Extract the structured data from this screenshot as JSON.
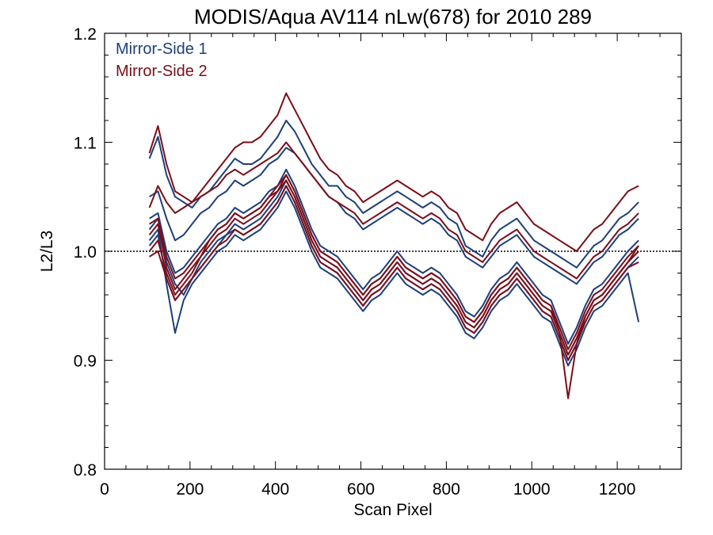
{
  "chart_data": {
    "type": "line",
    "title": "MODIS/Aqua AV114 nLw(678) for 2010 289",
    "xlabel": "Scan Pixel",
    "ylabel": "L2/L3",
    "xlim": [
      0,
      1350
    ],
    "ylim": [
      0.8,
      1.2
    ],
    "x_ticks": [
      0,
      200,
      400,
      600,
      800,
      1000,
      1200
    ],
    "x_tick_labels": [
      "0",
      "200",
      "400",
      "600",
      "800",
      "1000",
      "1200"
    ],
    "y_ticks": [
      0.8,
      0.9,
      1.0,
      1.1,
      1.2
    ],
    "y_tick_labels": [
      "0.8",
      "0.9",
      "1.0",
      "1.1",
      "1.2"
    ],
    "reference_line": 1.0,
    "legend_position": "top-left",
    "grid": false,
    "colors": {
      "mirror_side_1": "#1f3f7a",
      "mirror_side_2": "#7a0f1a"
    },
    "legend": [
      {
        "label": "Mirror-Side 1",
        "color": "#1f3f7a"
      },
      {
        "label": "Mirror-Side 2",
        "color": "#7a0f1a"
      }
    ],
    "x": [
      105,
      125,
      145,
      165,
      185,
      205,
      225,
      245,
      265,
      285,
      305,
      325,
      345,
      365,
      385,
      405,
      425,
      445,
      465,
      485,
      505,
      525,
      545,
      565,
      585,
      605,
      625,
      645,
      665,
      685,
      705,
      725,
      745,
      765,
      785,
      805,
      825,
      845,
      865,
      885,
      905,
      925,
      945,
      965,
      985,
      1005,
      1025,
      1045,
      1065,
      1085,
      1105,
      1125,
      1145,
      1165,
      1185,
      1205,
      1225,
      1250
    ],
    "series": [
      {
        "group": 1,
        "values": [
          1.085,
          1.105,
          1.07,
          1.05,
          1.045,
          1.04,
          1.05,
          1.055,
          1.065,
          1.075,
          1.085,
          1.08,
          1.08,
          1.085,
          1.095,
          1.105,
          1.12,
          1.11,
          1.095,
          1.08,
          1.07,
          1.06,
          1.06,
          1.05,
          1.045,
          1.035,
          1.04,
          1.045,
          1.05,
          1.055,
          1.05,
          1.045,
          1.04,
          1.045,
          1.04,
          1.03,
          1.025,
          1.005,
          1.0,
          0.995,
          1.01,
          1.02,
          1.025,
          1.03,
          1.02,
          1.01,
          1.005,
          1.0,
          0.995,
          0.99,
          0.985,
          0.995,
          1.005,
          1.01,
          1.02,
          1.03,
          1.035,
          1.045
        ]
      },
      {
        "group": 1,
        "values": [
          1.05,
          1.055,
          1.03,
          1.01,
          1.015,
          1.025,
          1.035,
          1.04,
          1.05,
          1.055,
          1.065,
          1.06,
          1.065,
          1.07,
          1.08,
          1.085,
          1.095,
          1.09,
          1.08,
          1.07,
          1.06,
          1.05,
          1.045,
          1.035,
          1.03,
          1.02,
          1.025,
          1.03,
          1.035,
          1.04,
          1.035,
          1.03,
          1.025,
          1.03,
          1.025,
          1.015,
          1.01,
          0.995,
          0.99,
          0.985,
          0.995,
          1.005,
          1.01,
          1.015,
          1.005,
          0.995,
          0.99,
          0.985,
          0.98,
          0.975,
          0.97,
          0.98,
          0.99,
          0.995,
          1.005,
          1.015,
          1.02,
          1.03
        ]
      },
      {
        "group": 1,
        "values": [
          1.02,
          1.03,
          0.99,
          0.97,
          0.96,
          0.975,
          0.985,
          0.995,
          1.005,
          1.015,
          1.02,
          1.015,
          1.02,
          1.025,
          1.035,
          1.045,
          1.06,
          1.045,
          1.025,
          1.005,
          0.99,
          0.985,
          0.98,
          0.97,
          0.96,
          0.95,
          0.96,
          0.965,
          0.975,
          0.985,
          0.975,
          0.97,
          0.965,
          0.97,
          0.965,
          0.955,
          0.945,
          0.93,
          0.925,
          0.935,
          0.95,
          0.96,
          0.965,
          0.975,
          0.965,
          0.955,
          0.945,
          0.94,
          0.92,
          0.9,
          0.915,
          0.935,
          0.95,
          0.955,
          0.965,
          0.975,
          0.985,
          0.995
        ]
      },
      {
        "group": 1,
        "values": [
          1.005,
          1.015,
          0.975,
          0.955,
          0.965,
          0.975,
          0.99,
          1.0,
          1.01,
          1.015,
          1.025,
          1.02,
          1.025,
          1.03,
          1.04,
          1.05,
          1.065,
          1.05,
          1.03,
          1.01,
          0.995,
          0.99,
          0.985,
          0.975,
          0.965,
          0.955,
          0.965,
          0.97,
          0.98,
          0.99,
          0.98,
          0.975,
          0.97,
          0.975,
          0.97,
          0.96,
          0.95,
          0.935,
          0.93,
          0.94,
          0.955,
          0.965,
          0.97,
          0.98,
          0.97,
          0.96,
          0.95,
          0.945,
          0.925,
          0.905,
          0.92,
          0.94,
          0.955,
          0.96,
          0.97,
          0.98,
          0.99,
          1.0
        ]
      },
      {
        "group": 1,
        "values": [
          1.03,
          1.035,
          1.0,
          0.98,
          0.985,
          0.995,
          1.005,
          1.015,
          1.025,
          1.03,
          1.04,
          1.035,
          1.04,
          1.045,
          1.055,
          1.06,
          1.075,
          1.06,
          1.04,
          1.02,
          1.005,
          1.0,
          0.995,
          0.985,
          0.975,
          0.965,
          0.975,
          0.98,
          0.99,
          1.0,
          0.99,
          0.985,
          0.98,
          0.985,
          0.98,
          0.97,
          0.96,
          0.945,
          0.94,
          0.95,
          0.965,
          0.975,
          0.98,
          0.99,
          0.98,
          0.97,
          0.96,
          0.955,
          0.935,
          0.915,
          0.93,
          0.95,
          0.965,
          0.97,
          0.98,
          0.99,
          1.0,
          1.01
        ]
      },
      {
        "group": 1,
        "values": [
          1.01,
          1.02,
          0.97,
          0.925,
          0.955,
          0.97,
          0.98,
          0.99,
          1.0,
          1.005,
          1.015,
          1.01,
          1.015,
          1.02,
          1.03,
          1.04,
          1.055,
          1.04,
          1.02,
          1.0,
          0.985,
          0.98,
          0.975,
          0.965,
          0.955,
          0.945,
          0.955,
          0.96,
          0.97,
          0.98,
          0.97,
          0.965,
          0.96,
          0.965,
          0.96,
          0.95,
          0.94,
          0.925,
          0.92,
          0.93,
          0.945,
          0.955,
          0.96,
          0.97,
          0.96,
          0.95,
          0.94,
          0.935,
          0.915,
          0.895,
          0.91,
          0.93,
          0.945,
          0.95,
          0.96,
          0.97,
          0.98,
          0.935
        ]
      },
      {
        "group": 2,
        "values": [
          1.09,
          1.115,
          1.08,
          1.055,
          1.05,
          1.045,
          1.055,
          1.065,
          1.075,
          1.085,
          1.095,
          1.1,
          1.1,
          1.105,
          1.115,
          1.125,
          1.145,
          1.13,
          1.115,
          1.1,
          1.085,
          1.075,
          1.07,
          1.06,
          1.055,
          1.045,
          1.05,
          1.055,
          1.06,
          1.065,
          1.06,
          1.055,
          1.05,
          1.055,
          1.05,
          1.04,
          1.035,
          1.02,
          1.015,
          1.01,
          1.025,
          1.035,
          1.04,
          1.045,
          1.035,
          1.025,
          1.02,
          1.015,
          1.01,
          1.005,
          1.0,
          1.01,
          1.02,
          1.025,
          1.035,
          1.045,
          1.055,
          1.06
        ]
      },
      {
        "group": 2,
        "values": [
          1.04,
          1.06,
          1.045,
          1.035,
          1.04,
          1.045,
          1.05,
          1.055,
          1.06,
          1.07,
          1.075,
          1.07,
          1.075,
          1.08,
          1.085,
          1.09,
          1.1,
          1.09,
          1.08,
          1.07,
          1.06,
          1.05,
          1.045,
          1.04,
          1.035,
          1.025,
          1.03,
          1.035,
          1.04,
          1.045,
          1.04,
          1.035,
          1.03,
          1.035,
          1.03,
          1.02,
          1.015,
          1.0,
          0.995,
          0.99,
          1.0,
          1.01,
          1.015,
          1.02,
          1.01,
          1.0,
          0.995,
          0.99,
          0.985,
          0.98,
          0.975,
          0.985,
          0.995,
          1.0,
          1.01,
          1.02,
          1.025,
          1.035
        ]
      },
      {
        "group": 2,
        "values": [
          1.025,
          1.03,
          0.995,
          0.975,
          0.98,
          0.99,
          1.0,
          1.01,
          1.02,
          1.025,
          1.035,
          1.03,
          1.035,
          1.04,
          1.05,
          1.055,
          1.07,
          1.055,
          1.035,
          1.015,
          1.0,
          0.995,
          0.99,
          0.98,
          0.97,
          0.96,
          0.97,
          0.975,
          0.985,
          0.995,
          0.985,
          0.98,
          0.975,
          0.98,
          0.975,
          0.965,
          0.955,
          0.94,
          0.935,
          0.945,
          0.96,
          0.97,
          0.975,
          0.985,
          0.975,
          0.965,
          0.955,
          0.95,
          0.93,
          0.91,
          0.925,
          0.945,
          0.96,
          0.965,
          0.975,
          0.985,
          0.995,
          1.005
        ]
      },
      {
        "group": 2,
        "values": [
          1.0,
          1.01,
          0.98,
          0.96,
          0.97,
          0.98,
          0.995,
          1.005,
          1.015,
          1.02,
          1.03,
          1.025,
          1.03,
          1.035,
          1.045,
          1.055,
          1.065,
          1.05,
          1.03,
          1.01,
          0.995,
          0.99,
          0.985,
          0.975,
          0.965,
          0.955,
          0.965,
          0.97,
          0.98,
          0.99,
          0.98,
          0.975,
          0.97,
          0.975,
          0.97,
          0.96,
          0.95,
          0.935,
          0.93,
          0.94,
          0.955,
          0.965,
          0.97,
          0.98,
          0.97,
          0.96,
          0.95,
          0.945,
          0.925,
          0.905,
          0.92,
          0.94,
          0.955,
          0.96,
          0.97,
          0.98,
          0.99,
          1.0
        ]
      },
      {
        "group": 2,
        "values": [
          1.015,
          1.025,
          0.985,
          0.965,
          0.975,
          0.985,
          0.995,
          1.01,
          1.02,
          1.025,
          1.035,
          1.03,
          1.035,
          1.04,
          1.05,
          1.06,
          1.07,
          1.055,
          1.035,
          1.015,
          1.0,
          0.995,
          0.99,
          0.98,
          0.97,
          0.96,
          0.97,
          0.975,
          0.985,
          0.995,
          0.985,
          0.98,
          0.975,
          0.98,
          0.975,
          0.965,
          0.955,
          0.94,
          0.935,
          0.945,
          0.96,
          0.97,
          0.975,
          0.985,
          0.975,
          0.965,
          0.955,
          0.95,
          0.925,
          0.865,
          0.915,
          0.94,
          0.955,
          0.96,
          0.97,
          0.98,
          0.99,
          1.005
        ]
      },
      {
        "group": 2,
        "values": [
          0.995,
          1.0,
          0.975,
          0.955,
          0.965,
          0.975,
          0.985,
          0.995,
          1.005,
          1.01,
          1.02,
          1.015,
          1.02,
          1.025,
          1.035,
          1.045,
          1.06,
          1.045,
          1.025,
          1.005,
          0.99,
          0.985,
          0.98,
          0.97,
          0.96,
          0.95,
          0.96,
          0.965,
          0.975,
          0.985,
          0.975,
          0.97,
          0.965,
          0.97,
          0.965,
          0.955,
          0.945,
          0.93,
          0.925,
          0.935,
          0.95,
          0.96,
          0.965,
          0.975,
          0.965,
          0.955,
          0.945,
          0.94,
          0.92,
          0.9,
          0.915,
          0.935,
          0.95,
          0.955,
          0.965,
          0.975,
          0.985,
          0.99
        ]
      }
    ]
  }
}
